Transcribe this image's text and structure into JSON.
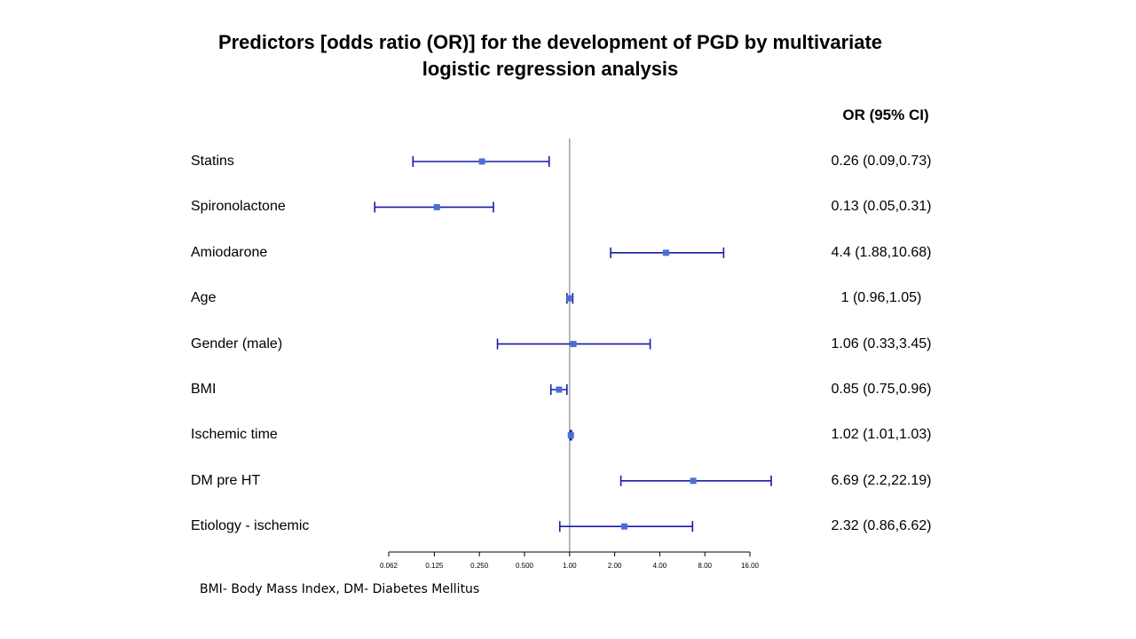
{
  "chart_data": {
    "type": "forest",
    "title": "Predictors [odds ratio (OR)] for the development of PGD by multivariate logistic regression analysis",
    "ci_header": "OR (95% CI)",
    "x_scale": "log2",
    "xlim": [
      0.062,
      16.0
    ],
    "reference_line": 1.0,
    "x_ticks": [
      "0.062",
      "0.125",
      "0.250",
      "0.500",
      "1.00",
      "2.00",
      "4.00",
      "8.00",
      "16.00"
    ],
    "colors": {
      "ci_line": "#1a1aa6",
      "point": "#4a6fd8",
      "reference": "#a0a0a0",
      "axis": "#000000"
    },
    "rows": [
      {
        "label": "Statins",
        "or": 0.26,
        "lo": 0.09,
        "hi": 0.73,
        "ci_text": "0.26 (0.09,0.73)"
      },
      {
        "label": "Spironolactone",
        "or": 0.13,
        "lo": 0.05,
        "hi": 0.31,
        "ci_text": "0.13 (0.05,0.31)"
      },
      {
        "label": "Amiodarone",
        "or": 4.4,
        "lo": 1.88,
        "hi": 10.68,
        "ci_text": "4.4 (1.88,10.68)"
      },
      {
        "label": "Age",
        "or": 1,
        "lo": 0.96,
        "hi": 1.05,
        "ci_text": "1 (0.96,1.05)"
      },
      {
        "label": "Gender (male)",
        "or": 1.06,
        "lo": 0.33,
        "hi": 3.45,
        "ci_text": "1.06 (0.33,3.45)"
      },
      {
        "label": "BMI",
        "or": 0.85,
        "lo": 0.75,
        "hi": 0.96,
        "ci_text": "0.85 (0.75,0.96)"
      },
      {
        "label": "Ischemic time",
        "or": 1.02,
        "lo": 1.01,
        "hi": 1.03,
        "ci_text": "1.02 (1.01,1.03)"
      },
      {
        "label": "DM pre HT",
        "or": 6.69,
        "lo": 2.2,
        "hi": 22.19,
        "ci_text": "6.69 (2.2,22.19)"
      },
      {
        "label": "Etiology - ischemic",
        "or": 2.32,
        "lo": 0.86,
        "hi": 6.62,
        "ci_text": "2.32 (0.86,6.62)"
      }
    ]
  },
  "footnote": "BMI- Body Mass Index, DM- Diabetes Mellitus"
}
